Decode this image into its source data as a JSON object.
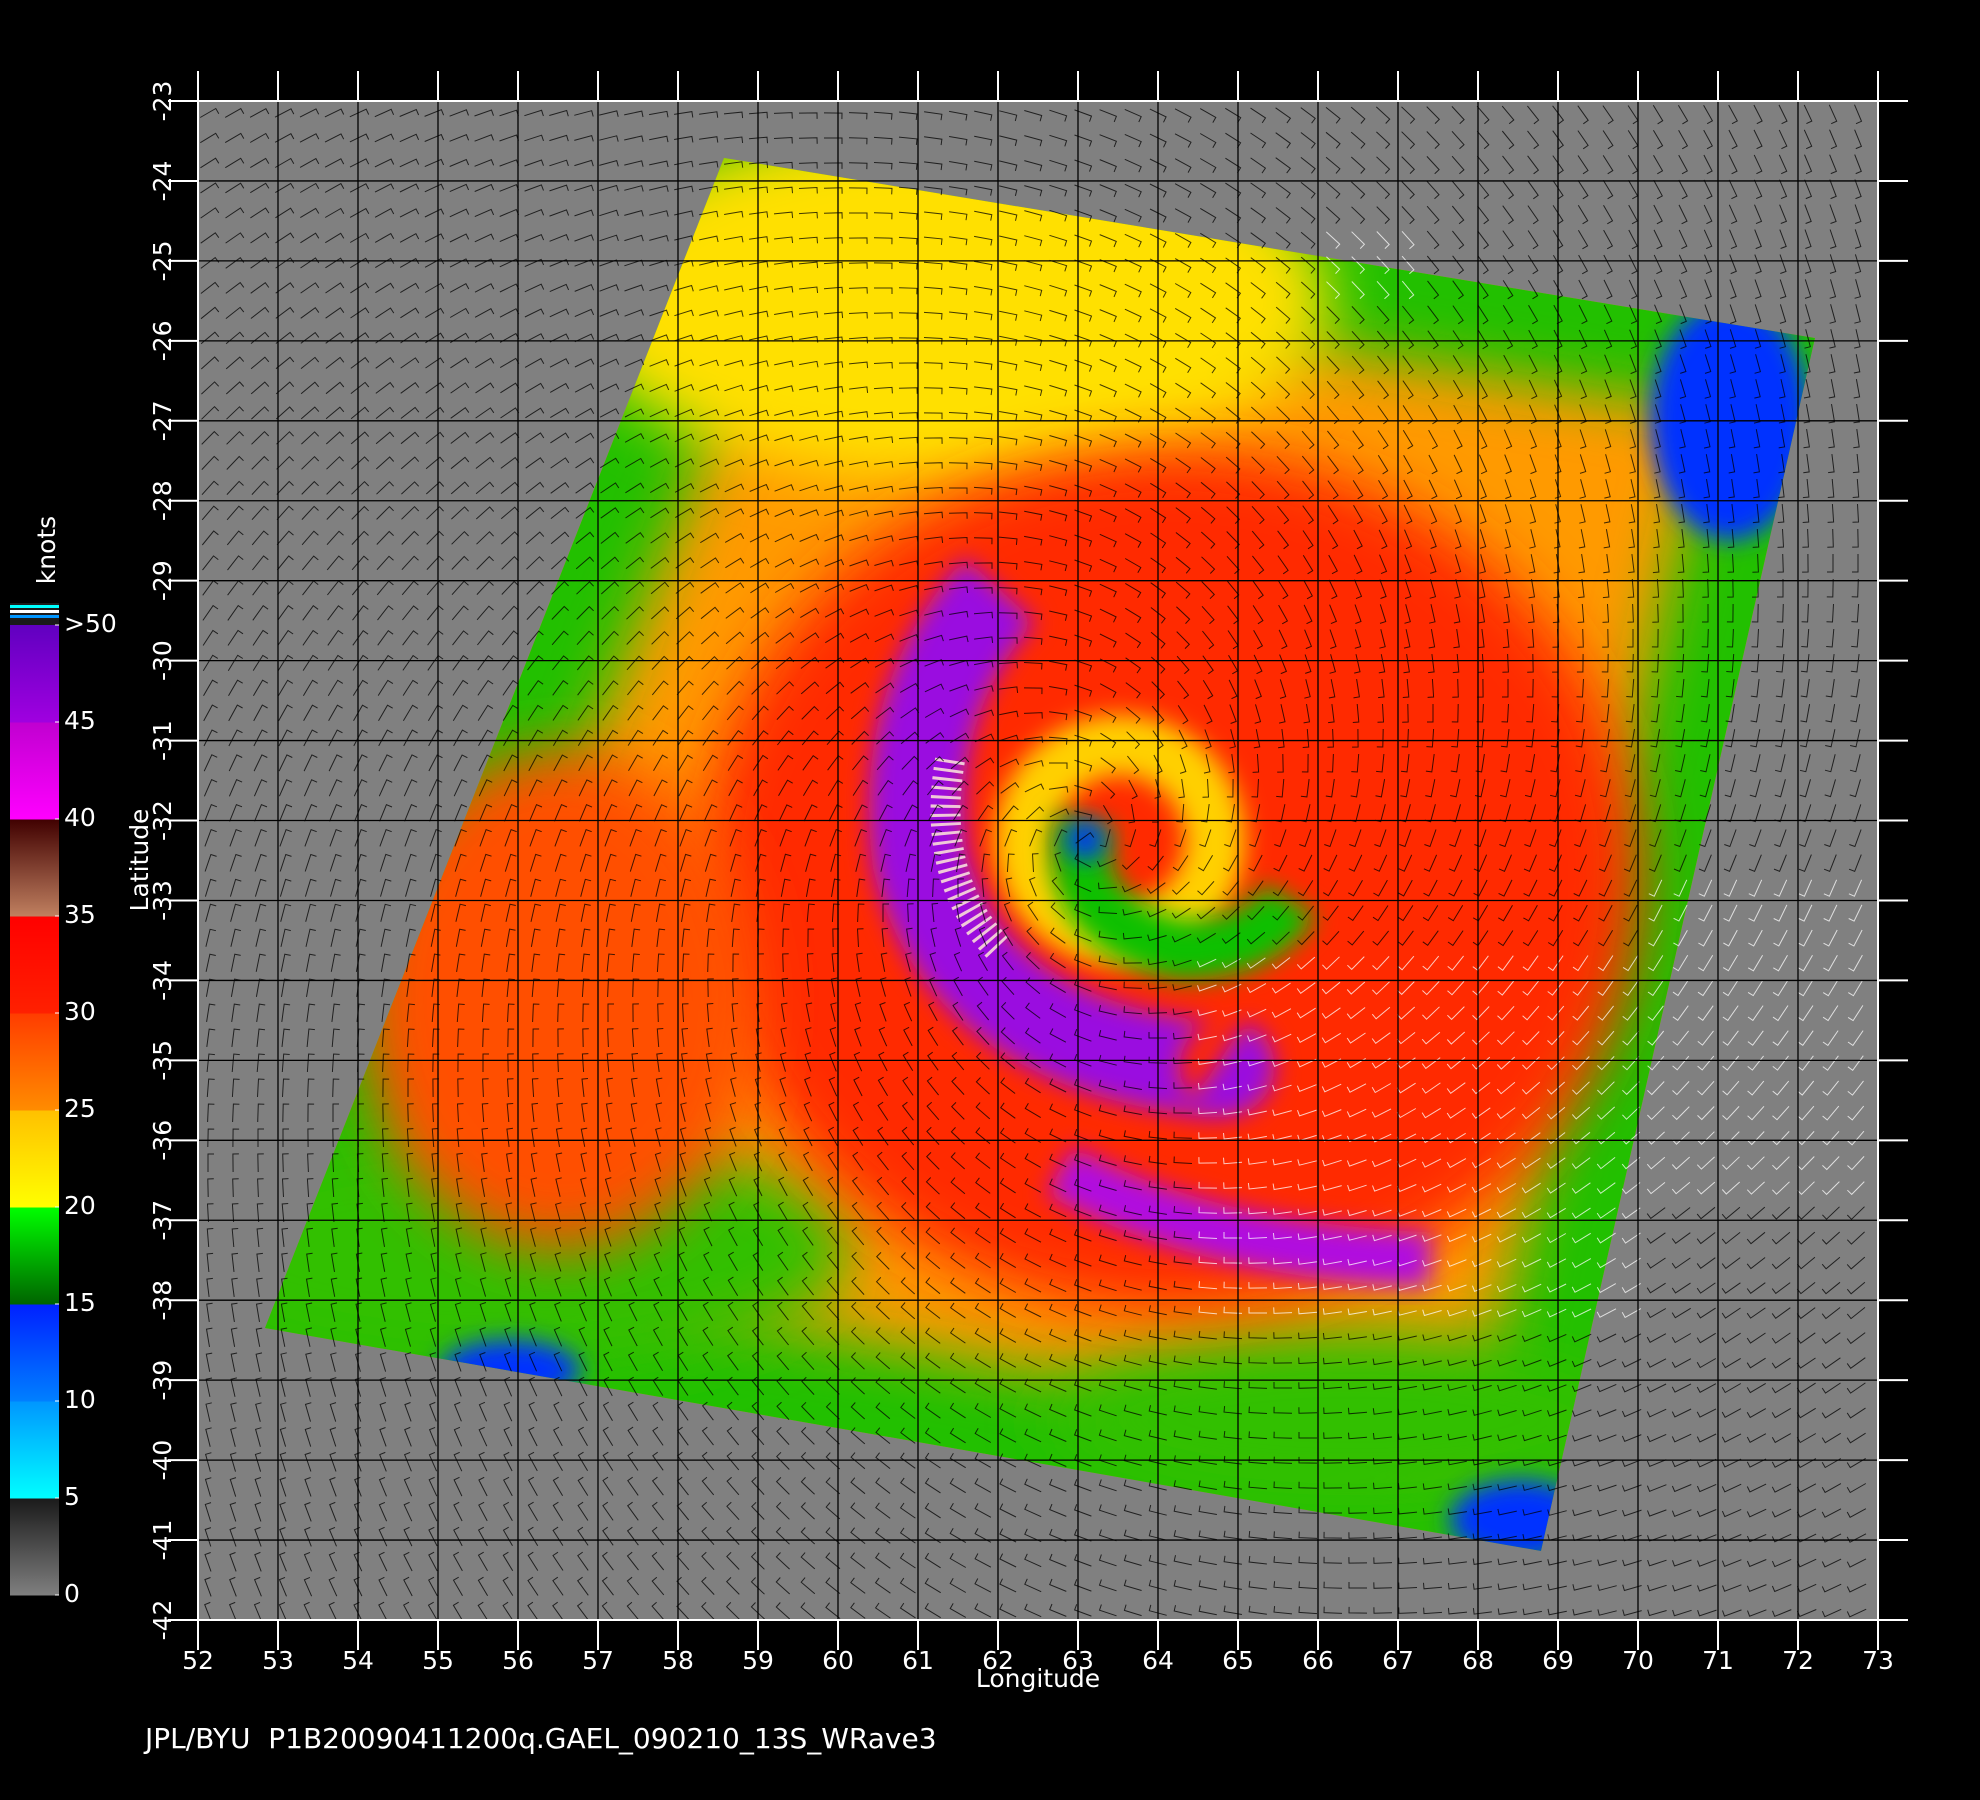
{
  "map": {
    "xlim": [
      52,
      73
    ],
    "ylim": [
      -42,
      -23
    ],
    "xticks": [
      52,
      53,
      54,
      55,
      56,
      57,
      58,
      59,
      60,
      61,
      62,
      63,
      64,
      65,
      66,
      67,
      68,
      69,
      70,
      71,
      72,
      73
    ],
    "yticks": [
      -23,
      -24,
      -25,
      -26,
      -27,
      -28,
      -29,
      -30,
      -31,
      -32,
      -33,
      -34,
      -35,
      -36,
      -37,
      -38,
      -39,
      -40,
      -41,
      -42
    ],
    "xlabel": "Longitude",
    "ylabel": "Latitude",
    "footer": "JPL/BYU  P1B20090411200q.GAEL_090210_13S_WRave3",
    "grid": true,
    "colorbar": {
      "unit": "knots",
      "range": [
        0,
        50
      ],
      "ticks": [
        0,
        5,
        10,
        15,
        20,
        25,
        30,
        35,
        40,
        45,
        {
          "value": 50,
          "label": ">50"
        }
      ],
      "segments": [
        [
          "#7f7f7f",
          "#1a1a1a"
        ],
        [
          "#00ffff",
          "#0096ff"
        ],
        [
          "#0080ff",
          "#0020ff"
        ],
        [
          "#006400",
          "#00ff00"
        ],
        [
          "#ffff00",
          "#ffc000"
        ],
        [
          "#ff8c00",
          "#ff3c00"
        ],
        [
          "#ff2000",
          "#ff0000"
        ],
        [
          "#c08060",
          "#400000"
        ],
        [
          "#ff00ff",
          "#c000d0"
        ],
        [
          "#a000e0",
          "#6000c0"
        ]
      ]
    }
  }
}
